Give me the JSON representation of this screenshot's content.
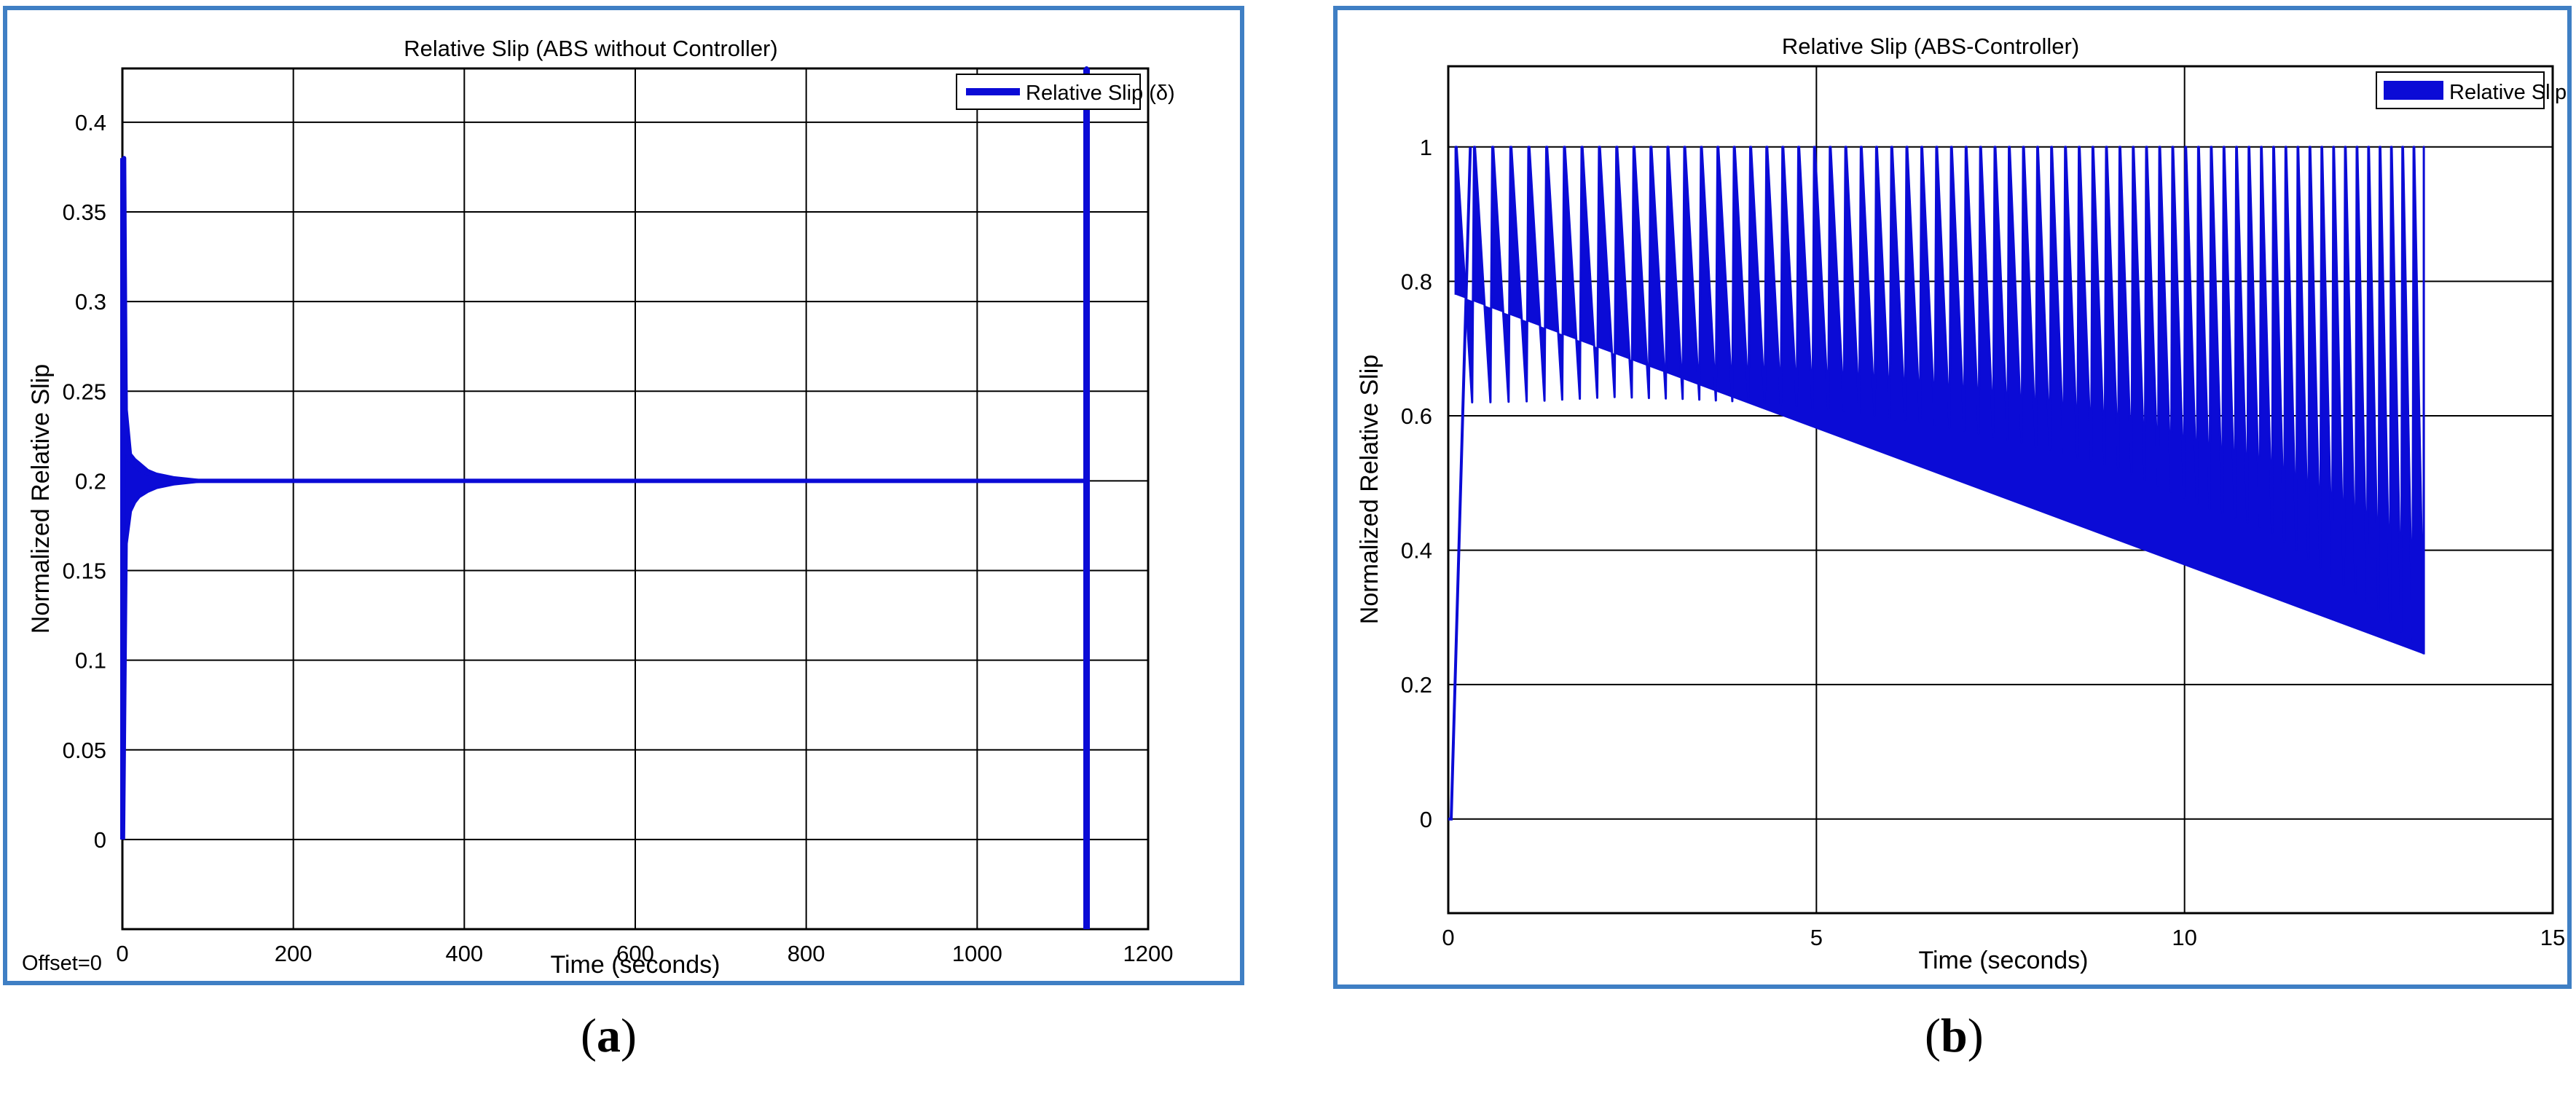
{
  "captions": {
    "a": {
      "open": "(",
      "letter": "a",
      "close": ")"
    },
    "b": {
      "open": "(",
      "letter": "b",
      "close": ")"
    }
  },
  "colors": {
    "series": "#0b0bd6",
    "frame": "#3f7fc4",
    "grid": "#000000"
  },
  "chart_data": [
    {
      "id": "a",
      "type": "line",
      "title": "Relative Slip (ABS without Controller)",
      "xlabel": "Time (seconds)",
      "ylabel": "Normalized Relative Slip",
      "xlim": [
        0,
        1200
      ],
      "ylim": [
        -0.05,
        0.43
      ],
      "xticks": [
        0,
        200,
        400,
        600,
        800,
        1000,
        1200
      ],
      "yticks": [
        0,
        0.05,
        0.1,
        0.15,
        0.2,
        0.25,
        0.3,
        0.35,
        0.4
      ],
      "ytick_labels": [
        "0",
        "0.05",
        "0.1",
        "0.15",
        "0.2",
        "0.25",
        "0.3",
        "0.35",
        "0.4"
      ],
      "grid": true,
      "legend_position": "top-right",
      "annotation": "Offset=0",
      "series": [
        {
          "name": "Relative Slip (δ)",
          "x": [
            0,
            2,
            4,
            8,
            12,
            18,
            25,
            35,
            50,
            70,
            100,
            300,
            600,
            900,
            1128,
            1128,
            1128
          ],
          "y": [
            0,
            0.38,
            0.22,
            0.212,
            0.21,
            0.207,
            0.205,
            0.203,
            0.201,
            0.2,
            0.2,
            0.2,
            0.2,
            0.2,
            0.2,
            0.43,
            -0.05
          ],
          "envelope": {
            "x": [
              2,
              5,
              10,
              15,
              20,
              30,
              40,
              60,
              80,
              100
            ],
            "upper": [
              0.38,
              0.24,
              0.215,
              0.212,
              0.21,
              0.206,
              0.204,
              0.202,
              0.201,
              0.2
            ],
            "lower": [
              0.0,
              0.165,
              0.183,
              0.188,
              0.191,
              0.194,
              0.196,
              0.198,
              0.199,
              0.2
            ]
          }
        }
      ]
    },
    {
      "id": "b",
      "type": "line",
      "title": "Relative Slip (ABS-Controller)",
      "xlabel": "Time (seconds)",
      "ylabel": "Normalized Relative Slip",
      "xlim": [
        0,
        15
      ],
      "ylim": [
        -0.14,
        1.12
      ],
      "xticks": [
        0,
        5,
        10,
        15
      ],
      "yticks": [
        0,
        0.2,
        0.4,
        0.6,
        0.8,
        1
      ],
      "ytick_labels": [
        "0",
        "0.2",
        "0.4",
        "0.6",
        "0.8",
        "1"
      ],
      "grid": true,
      "legend_position": "top-right",
      "series": [
        {
          "name": "Relative Slip (δ)",
          "rise": {
            "x": [
              0,
              0.04,
              0.3
            ],
            "y": [
              0,
              0,
              1.0
            ]
          },
          "oscillation": {
            "peak": 1.0,
            "t_start": 0.1,
            "t_end": 13.25,
            "first_period": 0.25,
            "last_period": 0.15,
            "trough_t": [
              0.3,
              1,
              2,
              3,
              4,
              5,
              6,
              7,
              8,
              9,
              10,
              11,
              12,
              12.5,
              13,
              13.25
            ],
            "trough_y": [
              0.62,
              0.622,
              0.628,
              0.625,
              0.62,
              0.61,
              0.595,
              0.575,
              0.55,
              0.52,
              0.47,
              0.43,
              0.35,
              0.31,
              0.26,
              0.245
            ]
          }
        }
      ]
    }
  ]
}
